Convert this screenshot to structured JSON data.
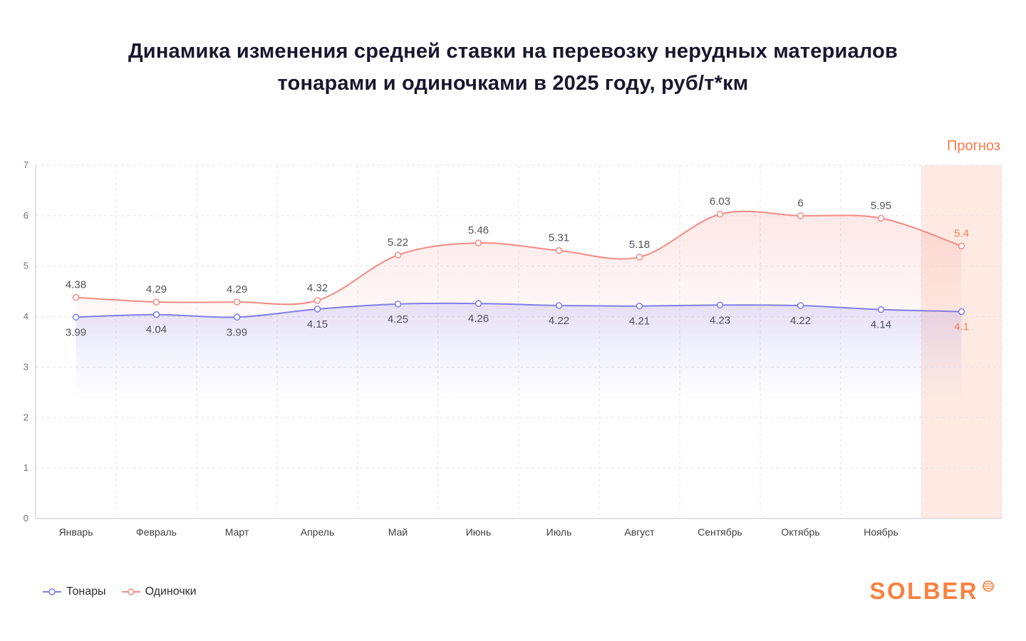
{
  "title": {
    "line1": "Динамика изменения средней ставки на перевозку нерудных материалов",
    "line2": "тонарами и одиночками в 2025 году, руб/т*км"
  },
  "forecast_label": "Прогноз",
  "legend": {
    "items": [
      {
        "label": "Тонары"
      },
      {
        "label": "Одиночки"
      }
    ]
  },
  "logo": {
    "text": "SOLBER"
  },
  "colors": {
    "tonary": "#7b7ef0",
    "odinochki": "#f58a84",
    "forecast_accent": "#f97a4a",
    "forecast_band": "rgba(249,122,74,0.16)",
    "logo": "#f9813e",
    "label": "#52525b",
    "grid": "#e4e4e9",
    "axis": "#c9c9d0",
    "tick": "#71717a",
    "month": "#3f3f46"
  },
  "chart_data": {
    "type": "line",
    "title": "Динамика изменения средней ставки на перевозку нерудных материалов тонарами и одиночками в 2025 году, руб/т*км",
    "categories": [
      "Январь",
      "Февраль",
      "Март",
      "Апрель",
      "Май",
      "Июнь",
      "Июль",
      "Август",
      "Сентябрь",
      "Октябрь",
      "Ноябрь",
      ""
    ],
    "series": [
      {
        "name": "Тонары",
        "color_key": "tonary",
        "label_position": "below",
        "values": [
          3.99,
          4.04,
          3.99,
          4.15,
          4.25,
          4.26,
          4.22,
          4.21,
          4.23,
          4.22,
          4.14,
          4.1
        ]
      },
      {
        "name": "Одиночки",
        "color_key": "odinochki",
        "label_position": "above",
        "values": [
          4.38,
          4.29,
          4.29,
          4.32,
          5.22,
          5.46,
          5.31,
          5.18,
          6.03,
          6,
          5.95,
          5.4
        ]
      }
    ],
    "ylim": [
      0,
      7
    ],
    "yticks": [
      0,
      1,
      2,
      3,
      4,
      5,
      6,
      7
    ],
    "forecast_band_start_index": 11,
    "grid": true,
    "legend_position": "bottom-left",
    "annotations": [
      "Прогноз"
    ]
  }
}
